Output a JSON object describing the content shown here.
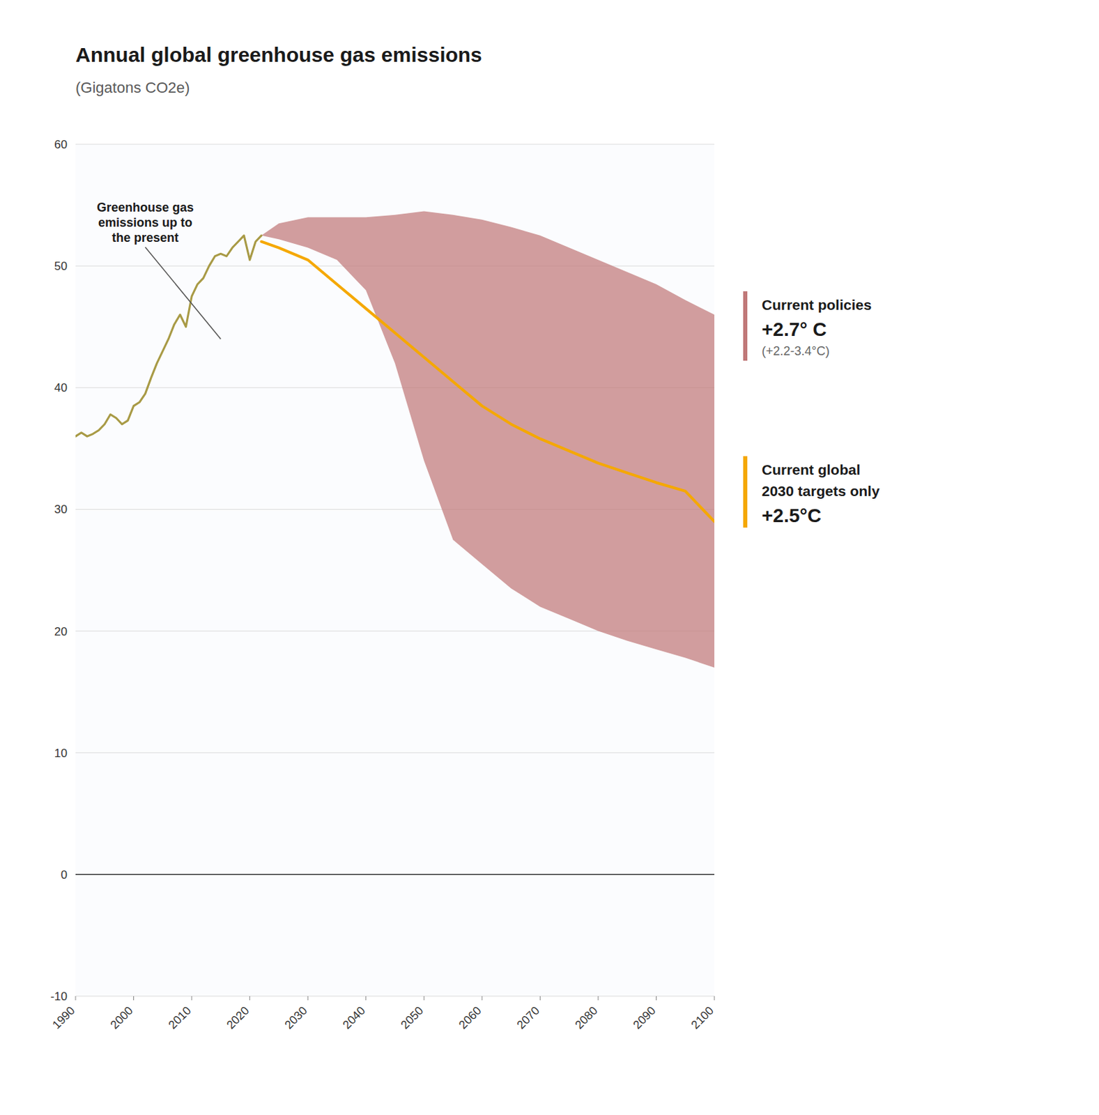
{
  "chart_data": {
    "type": "line",
    "title": "Annual global greenhouse gas emissions",
    "subtitle": "(Gigatons CO2e)",
    "xlim": [
      1990,
      2100
    ],
    "ylim": [
      -10,
      60
    ],
    "xticks": [
      1990,
      2000,
      2010,
      2020,
      2030,
      2040,
      2050,
      2060,
      2070,
      2080,
      2090,
      2100
    ],
    "yticks": [
      -10,
      0,
      10,
      20,
      30,
      40,
      50,
      60
    ],
    "grid": true,
    "series": [
      {
        "type": "line",
        "color": "#a89a45",
        "x": [
          1990,
          1991,
          1992,
          1993,
          1994,
          1995,
          1996,
          1997,
          1998,
          1999,
          2000,
          2001,
          2002,
          2003,
          2004,
          2005,
          2006,
          2007,
          2008,
          2009,
          2010,
          2011,
          2012,
          2013,
          2014,
          2015,
          2016,
          2017,
          2018,
          2019,
          2020,
          2021,
          2022
        ],
        "values": [
          36.0,
          36.3,
          36.0,
          36.2,
          36.5,
          37.0,
          37.8,
          37.5,
          37.0,
          37.3,
          38.5,
          38.8,
          39.5,
          40.8,
          42.0,
          43.0,
          44.0,
          45.2,
          46.0,
          45.0,
          47.5,
          48.5,
          49.0,
          50.0,
          50.8,
          51.0,
          50.8,
          51.5,
          52.0,
          52.5,
          50.5,
          52.0,
          52.5
        ]
      },
      {
        "type": "area",
        "color": "#c07878",
        "x": [
          2022,
          2025,
          2030,
          2035,
          2040,
          2045,
          2050,
          2055,
          2060,
          2065,
          2070,
          2075,
          2080,
          2085,
          2090,
          2095,
          2100
        ],
        "upper": [
          52.5,
          53.5,
          54.0,
          54.0,
          54.0,
          54.2,
          54.5,
          54.2,
          53.8,
          53.2,
          52.5,
          51.5,
          50.5,
          49.5,
          48.5,
          47.2,
          46.0
        ],
        "lower": [
          52.5,
          52.2,
          51.5,
          50.5,
          48.0,
          42.0,
          34.0,
          27.5,
          25.5,
          23.5,
          22.0,
          21.0,
          20.0,
          19.2,
          18.5,
          17.8,
          17.0
        ],
        "legend_lines": [
          "Current policies",
          "+2.7° C",
          "(+2.2-3.4°C)"
        ]
      },
      {
        "type": "line",
        "color": "#f5a800",
        "x": [
          2022,
          2025,
          2030,
          2035,
          2040,
          2045,
          2050,
          2055,
          2060,
          2065,
          2070,
          2075,
          2080,
          2085,
          2090,
          2095,
          2100
        ],
        "values": [
          52.0,
          51.5,
          50.5,
          48.5,
          46.5,
          44.5,
          42.5,
          40.5,
          38.5,
          37.0,
          35.8,
          34.8,
          33.8,
          33.0,
          32.2,
          31.5,
          29.0
        ],
        "legend_lines": [
          "Current global",
          "2030 targets only",
          "+2.5°C"
        ]
      }
    ],
    "annotations": [
      {
        "text": "Greenhouse gas\nemissions up to\nthe present",
        "xy": [
          2015,
          44
        ],
        "xytext": [
          2002,
          55.5
        ]
      }
    ]
  }
}
